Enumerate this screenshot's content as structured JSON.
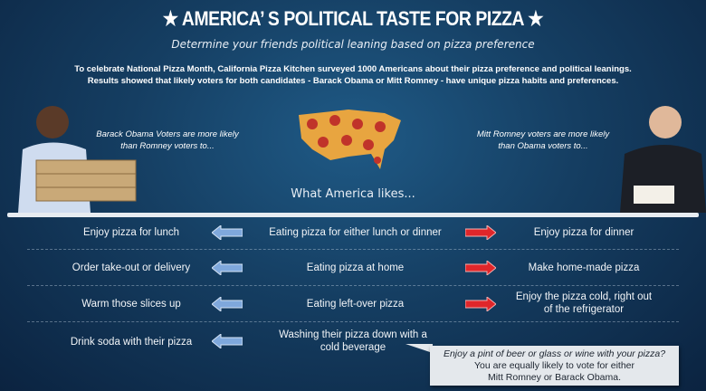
{
  "header": {
    "title": "★ AMERICA’ S POLITICAL TASTE FOR PIZZA ★",
    "subtitle": "Determine your friends political leaning based on pizza preference",
    "intro_line1": "To celebrate National Pizza Month, California Pizza Kitchen surveyed 1000 Americans about their pizza preference and political leanings.",
    "intro_line2": "Results showed that likely voters for both candidates - Barack Obama or Mitt Romney - have unique pizza habits and preferences."
  },
  "obama_label": {
    "line1": "Barack Obama Voters are more likely",
    "line2": "than Romney voters to..."
  },
  "romney_label": {
    "line1": "Mitt Romney voters are more likely",
    "line2": "than Obama voters to..."
  },
  "center_label": "What America likes...",
  "colors": {
    "obama_arrow": "#7fa8dc",
    "romney_arrow": "#e0262a",
    "background": "#153e62"
  },
  "rows": [
    {
      "obama": "Enjoy pizza for lunch",
      "america": "Eating pizza for either lunch or dinner",
      "romney": "Enjoy pizza for dinner"
    },
    {
      "obama": "Order take-out or delivery",
      "america": "Eating pizza at home",
      "romney": "Make home-made pizza"
    },
    {
      "obama": "Warm those slices up",
      "america": "Eating left-over pizza",
      "romney": "Enjoy the pizza cold, right out of the refrigerator"
    },
    {
      "obama": "Drink soda with their pizza",
      "america": "Washing their pizza down with a cold beverage",
      "romney": ""
    }
  ],
  "callout": {
    "line1": "Enjoy a pint of beer or glass or wine with your pizza?",
    "line2": "You are equally likely to vote for either",
    "line3": "Mitt Romney or Barack Obama."
  }
}
